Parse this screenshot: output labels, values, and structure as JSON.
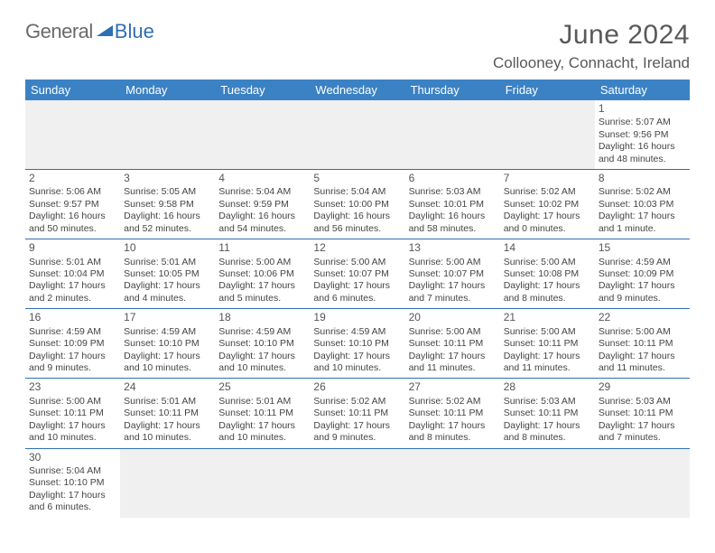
{
  "logo": {
    "part1": "General",
    "part2": "Blue"
  },
  "header": {
    "title": "June 2024",
    "location": "Collooney, Connacht, Ireland"
  },
  "colors": {
    "accent": "#3b82c4",
    "border": "#2f6fb3",
    "text": "#444444",
    "title": "#595959",
    "blank": "#f0f0f0"
  },
  "calendar": {
    "day_names": [
      "Sunday",
      "Monday",
      "Tuesday",
      "Wednesday",
      "Thursday",
      "Friday",
      "Saturday"
    ],
    "weeks": [
      [
        null,
        null,
        null,
        null,
        null,
        null,
        {
          "d": "1",
          "sr": "Sunrise: 5:07 AM",
          "ss": "Sunset: 9:56 PM",
          "dl1": "Daylight: 16 hours",
          "dl2": "and 48 minutes."
        }
      ],
      [
        {
          "d": "2",
          "sr": "Sunrise: 5:06 AM",
          "ss": "Sunset: 9:57 PM",
          "dl1": "Daylight: 16 hours",
          "dl2": "and 50 minutes."
        },
        {
          "d": "3",
          "sr": "Sunrise: 5:05 AM",
          "ss": "Sunset: 9:58 PM",
          "dl1": "Daylight: 16 hours",
          "dl2": "and 52 minutes."
        },
        {
          "d": "4",
          "sr": "Sunrise: 5:04 AM",
          "ss": "Sunset: 9:59 PM",
          "dl1": "Daylight: 16 hours",
          "dl2": "and 54 minutes."
        },
        {
          "d": "5",
          "sr": "Sunrise: 5:04 AM",
          "ss": "Sunset: 10:00 PM",
          "dl1": "Daylight: 16 hours",
          "dl2": "and 56 minutes."
        },
        {
          "d": "6",
          "sr": "Sunrise: 5:03 AM",
          "ss": "Sunset: 10:01 PM",
          "dl1": "Daylight: 16 hours",
          "dl2": "and 58 minutes."
        },
        {
          "d": "7",
          "sr": "Sunrise: 5:02 AM",
          "ss": "Sunset: 10:02 PM",
          "dl1": "Daylight: 17 hours",
          "dl2": "and 0 minutes."
        },
        {
          "d": "8",
          "sr": "Sunrise: 5:02 AM",
          "ss": "Sunset: 10:03 PM",
          "dl1": "Daylight: 17 hours",
          "dl2": "and 1 minute."
        }
      ],
      [
        {
          "d": "9",
          "sr": "Sunrise: 5:01 AM",
          "ss": "Sunset: 10:04 PM",
          "dl1": "Daylight: 17 hours",
          "dl2": "and 2 minutes."
        },
        {
          "d": "10",
          "sr": "Sunrise: 5:01 AM",
          "ss": "Sunset: 10:05 PM",
          "dl1": "Daylight: 17 hours",
          "dl2": "and 4 minutes."
        },
        {
          "d": "11",
          "sr": "Sunrise: 5:00 AM",
          "ss": "Sunset: 10:06 PM",
          "dl1": "Daylight: 17 hours",
          "dl2": "and 5 minutes."
        },
        {
          "d": "12",
          "sr": "Sunrise: 5:00 AM",
          "ss": "Sunset: 10:07 PM",
          "dl1": "Daylight: 17 hours",
          "dl2": "and 6 minutes."
        },
        {
          "d": "13",
          "sr": "Sunrise: 5:00 AM",
          "ss": "Sunset: 10:07 PM",
          "dl1": "Daylight: 17 hours",
          "dl2": "and 7 minutes."
        },
        {
          "d": "14",
          "sr": "Sunrise: 5:00 AM",
          "ss": "Sunset: 10:08 PM",
          "dl1": "Daylight: 17 hours",
          "dl2": "and 8 minutes."
        },
        {
          "d": "15",
          "sr": "Sunrise: 4:59 AM",
          "ss": "Sunset: 10:09 PM",
          "dl1": "Daylight: 17 hours",
          "dl2": "and 9 minutes."
        }
      ],
      [
        {
          "d": "16",
          "sr": "Sunrise: 4:59 AM",
          "ss": "Sunset: 10:09 PM",
          "dl1": "Daylight: 17 hours",
          "dl2": "and 9 minutes."
        },
        {
          "d": "17",
          "sr": "Sunrise: 4:59 AM",
          "ss": "Sunset: 10:10 PM",
          "dl1": "Daylight: 17 hours",
          "dl2": "and 10 minutes."
        },
        {
          "d": "18",
          "sr": "Sunrise: 4:59 AM",
          "ss": "Sunset: 10:10 PM",
          "dl1": "Daylight: 17 hours",
          "dl2": "and 10 minutes."
        },
        {
          "d": "19",
          "sr": "Sunrise: 4:59 AM",
          "ss": "Sunset: 10:10 PM",
          "dl1": "Daylight: 17 hours",
          "dl2": "and 10 minutes."
        },
        {
          "d": "20",
          "sr": "Sunrise: 5:00 AM",
          "ss": "Sunset: 10:11 PM",
          "dl1": "Daylight: 17 hours",
          "dl2": "and 11 minutes."
        },
        {
          "d": "21",
          "sr": "Sunrise: 5:00 AM",
          "ss": "Sunset: 10:11 PM",
          "dl1": "Daylight: 17 hours",
          "dl2": "and 11 minutes."
        },
        {
          "d": "22",
          "sr": "Sunrise: 5:00 AM",
          "ss": "Sunset: 10:11 PM",
          "dl1": "Daylight: 17 hours",
          "dl2": "and 11 minutes."
        }
      ],
      [
        {
          "d": "23",
          "sr": "Sunrise: 5:00 AM",
          "ss": "Sunset: 10:11 PM",
          "dl1": "Daylight: 17 hours",
          "dl2": "and 10 minutes."
        },
        {
          "d": "24",
          "sr": "Sunrise: 5:01 AM",
          "ss": "Sunset: 10:11 PM",
          "dl1": "Daylight: 17 hours",
          "dl2": "and 10 minutes."
        },
        {
          "d": "25",
          "sr": "Sunrise: 5:01 AM",
          "ss": "Sunset: 10:11 PM",
          "dl1": "Daylight: 17 hours",
          "dl2": "and 10 minutes."
        },
        {
          "d": "26",
          "sr": "Sunrise: 5:02 AM",
          "ss": "Sunset: 10:11 PM",
          "dl1": "Daylight: 17 hours",
          "dl2": "and 9 minutes."
        },
        {
          "d": "27",
          "sr": "Sunrise: 5:02 AM",
          "ss": "Sunset: 10:11 PM",
          "dl1": "Daylight: 17 hours",
          "dl2": "and 8 minutes."
        },
        {
          "d": "28",
          "sr": "Sunrise: 5:03 AM",
          "ss": "Sunset: 10:11 PM",
          "dl1": "Daylight: 17 hours",
          "dl2": "and 8 minutes."
        },
        {
          "d": "29",
          "sr": "Sunrise: 5:03 AM",
          "ss": "Sunset: 10:11 PM",
          "dl1": "Daylight: 17 hours",
          "dl2": "and 7 minutes."
        }
      ],
      [
        {
          "d": "30",
          "sr": "Sunrise: 5:04 AM",
          "ss": "Sunset: 10:10 PM",
          "dl1": "Daylight: 17 hours",
          "dl2": "and 6 minutes."
        },
        null,
        null,
        null,
        null,
        null,
        null
      ]
    ]
  }
}
